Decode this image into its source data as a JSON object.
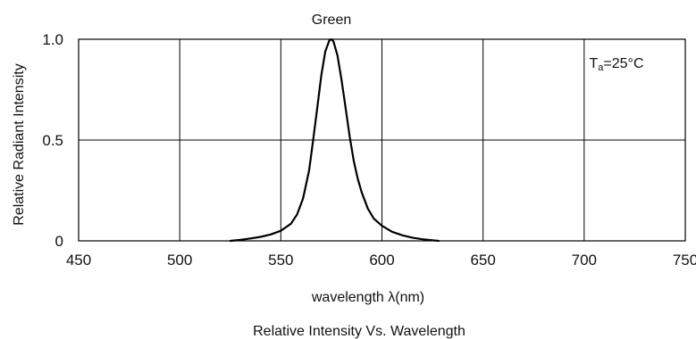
{
  "chart_data": {
    "type": "line",
    "title": "Green",
    "caption": "Relative Intensity Vs. Wavelength",
    "xlabel": "wavelength λ(nm)",
    "ylabel": "Relative Radiant Intensity",
    "annotation": {
      "base": "T",
      "sub": "a",
      "rest": "=25°C"
    },
    "xlim": [
      450,
      750
    ],
    "ylim": [
      0,
      1.0
    ],
    "x_ticks": [
      450,
      500,
      550,
      600,
      650,
      700,
      750
    ],
    "y_ticks": [
      {
        "value": 0,
        "label": "0"
      },
      {
        "value": 0.5,
        "label": "0.5"
      },
      {
        "value": 1.0,
        "label": "1.0"
      }
    ],
    "grid": true,
    "series": [
      {
        "x": [
          525,
          530,
          535,
          540,
          545,
          550,
          555,
          558,
          561,
          564,
          566,
          568,
          570,
          572,
          574,
          575,
          576,
          578,
          580,
          582,
          584,
          586,
          588,
          590,
          593,
          596,
          600,
          605,
          610,
          615,
          620,
          625,
          628
        ],
        "y": [
          0.0,
          0.005,
          0.012,
          0.02,
          0.032,
          0.05,
          0.085,
          0.13,
          0.21,
          0.35,
          0.5,
          0.66,
          0.82,
          0.94,
          0.995,
          1.0,
          0.99,
          0.92,
          0.8,
          0.66,
          0.52,
          0.4,
          0.31,
          0.24,
          0.16,
          0.11,
          0.075,
          0.045,
          0.028,
          0.016,
          0.008,
          0.003,
          0.0
        ]
      }
    ]
  }
}
